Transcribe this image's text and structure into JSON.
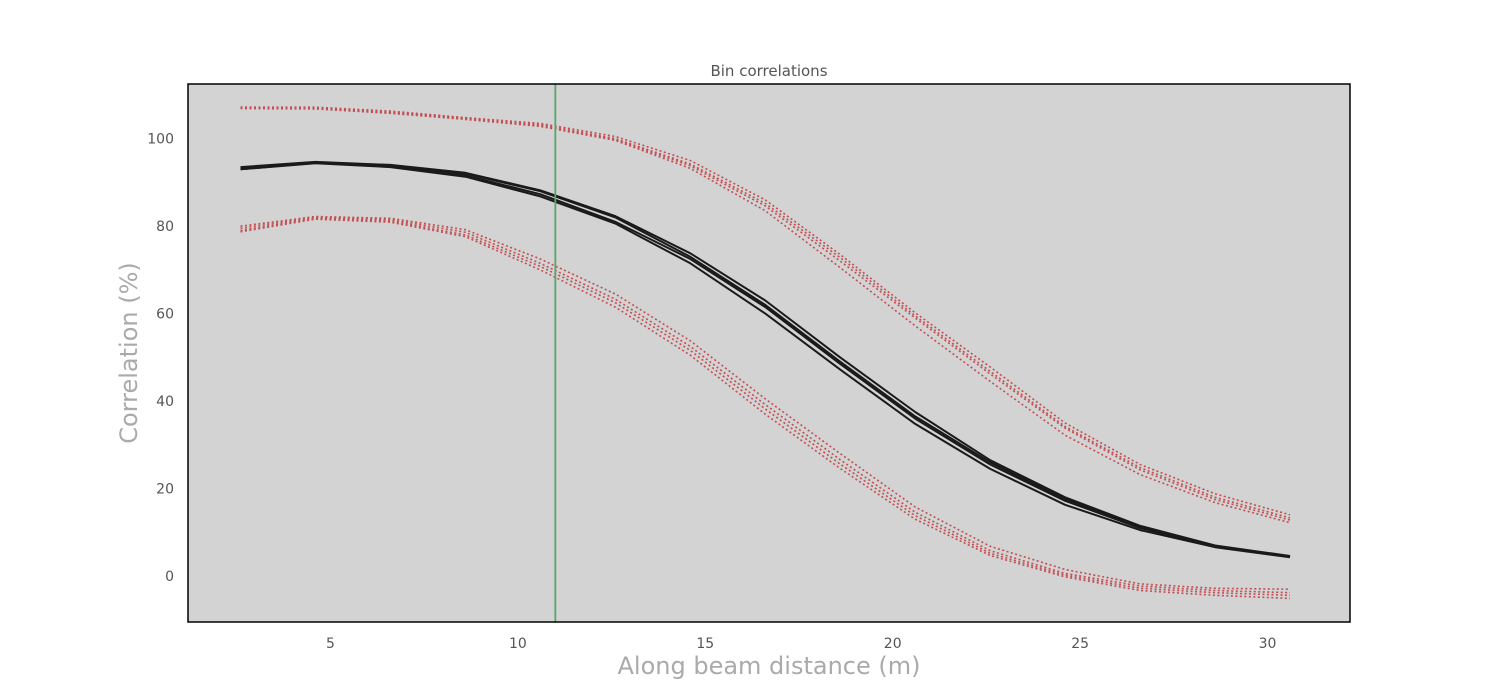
{
  "chart_data": {
    "type": "line",
    "title": "Bin correlations",
    "xlabel": "Along beam distance (m)",
    "ylabel": "Correlation (%)",
    "xlim": [
      1.2,
      32.2
    ],
    "ylim": [
      -10.5,
      112.5
    ],
    "x_ticks": [
      5,
      10,
      15,
      20,
      25,
      30
    ],
    "y_ticks": [
      0,
      20,
      40,
      60,
      80,
      100
    ],
    "grid": false,
    "background": "#d3d3d3",
    "x": [
      2.6,
      4.6,
      6.6,
      8.6,
      10.6,
      12.6,
      14.6,
      16.6,
      18.6,
      20.6,
      22.6,
      24.6,
      26.6,
      28.6,
      30.6
    ],
    "series": [
      {
        "style": "solid",
        "color": "#1a1a1a",
        "values": [
          93.5,
          94.7,
          94.0,
          92.2,
          88.2,
          82.3,
          73.8,
          63.0,
          50.0,
          37.5,
          26.5,
          18.0,
          11.5,
          7.0,
          4.6
        ]
      },
      {
        "style": "solid",
        "color": "#1a1a1a",
        "values": [
          93.0,
          94.5,
          93.6,
          91.6,
          87.3,
          81.0,
          72.5,
          61.5,
          48.5,
          36.0,
          25.5,
          17.2,
          11.0,
          6.8,
          4.5
        ]
      },
      {
        "style": "solid",
        "color": "#1a1a1a",
        "values": [
          93.2,
          94.6,
          93.8,
          92.0,
          88.0,
          82.0,
          73.0,
          62.0,
          49.0,
          36.5,
          26.0,
          17.6,
          11.2,
          6.9,
          4.5
        ]
      },
      {
        "style": "solid",
        "color": "#1a1a1a",
        "values": [
          93.0,
          94.4,
          93.5,
          91.3,
          86.8,
          80.6,
          71.5,
          60.0,
          47.2,
          34.8,
          24.5,
          16.3,
          10.5,
          6.6,
          4.3
        ]
      },
      {
        "style": "dotted",
        "color": "#c44e52",
        "values": [
          107.2,
          107.2,
          106.3,
          104.8,
          103.5,
          100.5,
          95.0,
          86.0,
          73.5,
          60.2,
          47.8,
          35.0,
          25.5,
          18.8,
          14.0
        ]
      },
      {
        "style": "dotted",
        "color": "#c44e52",
        "values": [
          107.0,
          107.0,
          106.0,
          104.8,
          103.2,
          100.0,
          94.2,
          85.2,
          72.8,
          59.5,
          46.8,
          34.2,
          24.8,
          18.0,
          13.3
        ]
      },
      {
        "style": "dotted",
        "color": "#c44e52",
        "values": [
          107.0,
          106.9,
          105.9,
          104.6,
          103.0,
          99.8,
          93.8,
          84.6,
          72.0,
          59.0,
          46.2,
          33.8,
          24.3,
          17.5,
          12.8
        ]
      },
      {
        "style": "dotted",
        "color": "#c44e52",
        "values": [
          106.9,
          106.8,
          105.8,
          104.4,
          102.8,
          99.6,
          93.2,
          83.5,
          70.5,
          57.2,
          44.5,
          32.2,
          23.2,
          16.8,
          12.2
        ]
      },
      {
        "style": "dotted",
        "color": "#c44e52",
        "values": [
          80.0,
          82.2,
          81.8,
          79.2,
          72.5,
          64.5,
          53.8,
          40.5,
          28.0,
          15.8,
          6.8,
          1.5,
          -1.8,
          -2.8,
          -3.0
        ]
      },
      {
        "style": "dotted",
        "color": "#c44e52",
        "values": [
          79.5,
          82.0,
          81.5,
          78.6,
          71.5,
          63.3,
          52.5,
          39.2,
          26.6,
          14.6,
          5.8,
          0.6,
          -2.3,
          -3.3,
          -3.8
        ]
      },
      {
        "style": "dotted",
        "color": "#c44e52",
        "values": [
          79.0,
          81.8,
          81.2,
          78.0,
          70.8,
          62.5,
          51.6,
          38.2,
          25.6,
          13.8,
          5.2,
          0.2,
          -2.8,
          -3.8,
          -4.4
        ]
      },
      {
        "style": "dotted",
        "color": "#c44e52",
        "values": [
          78.7,
          81.6,
          80.9,
          77.6,
          70.0,
          61.5,
          50.5,
          37.0,
          24.6,
          13.0,
          4.7,
          -0.2,
          -3.3,
          -4.4,
          -5.1
        ]
      }
    ],
    "vertical_line": {
      "x": 11.0,
      "color": "#55a868"
    }
  }
}
